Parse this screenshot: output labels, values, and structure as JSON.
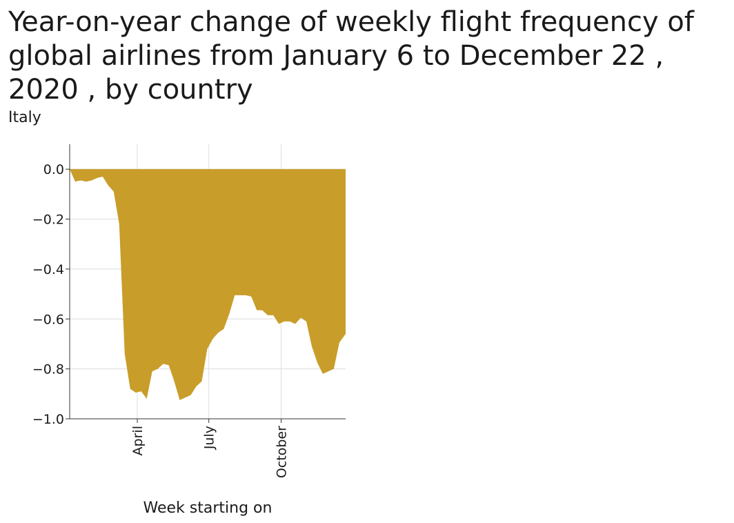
{
  "chart_data": {
    "type": "area",
    "title": "Year-on-year change of weekly flight frequency of global airlines from January 6 to December 22 , 2020 , by country",
    "subtitle": "Italy",
    "xlabel": "Week starting on",
    "ylabel": "",
    "ylim": [
      -1.0,
      0.1
    ],
    "xlim": [
      "2020-01-06",
      "2020-12-22"
    ],
    "grid": true,
    "fill_color": "#c89d2a",
    "x_ticks": [
      {
        "date": "2020-04-01",
        "label": "April"
      },
      {
        "date": "2020-07-01",
        "label": "July"
      },
      {
        "date": "2020-10-01",
        "label": "October"
      }
    ],
    "y_ticks": [
      {
        "value": 0.0,
        "label": "0.0"
      },
      {
        "value": -0.2,
        "label": "−0.2"
      },
      {
        "value": -0.4,
        "label": "−0.4"
      },
      {
        "value": -0.6,
        "label": "−0.6"
      },
      {
        "value": -0.8,
        "label": "−0.8"
      },
      {
        "value": -1.0,
        "label": "−1.0"
      }
    ],
    "series": [
      {
        "x": [
          "2020-01-06",
          "2020-01-13",
          "2020-01-20",
          "2020-01-27",
          "2020-02-03",
          "2020-02-10",
          "2020-02-17",
          "2020-02-24",
          "2020-03-02",
          "2020-03-09",
          "2020-03-16",
          "2020-03-23",
          "2020-03-30",
          "2020-04-06",
          "2020-04-13",
          "2020-04-20",
          "2020-04-27",
          "2020-05-04",
          "2020-05-11",
          "2020-05-18",
          "2020-05-25",
          "2020-06-01",
          "2020-06-08",
          "2020-06-15",
          "2020-06-22",
          "2020-06-29",
          "2020-07-06",
          "2020-07-13",
          "2020-07-20",
          "2020-07-27",
          "2020-08-03",
          "2020-08-10",
          "2020-08-17",
          "2020-08-24",
          "2020-08-31",
          "2020-09-07",
          "2020-09-14",
          "2020-09-21",
          "2020-09-28",
          "2020-10-05",
          "2020-10-12",
          "2020-10-19",
          "2020-10-26",
          "2020-11-02",
          "2020-11-09",
          "2020-11-16",
          "2020-11-23",
          "2020-11-30",
          "2020-12-07",
          "2020-12-14",
          "2020-12-22"
        ],
        "values": [
          0.0,
          -0.05,
          -0.045,
          -0.05,
          -0.045,
          -0.035,
          -0.03,
          -0.065,
          -0.09,
          -0.22,
          -0.74,
          -0.88,
          -0.895,
          -0.89,
          -0.92,
          -0.81,
          -0.8,
          -0.78,
          -0.785,
          -0.85,
          -0.925,
          -0.915,
          -0.905,
          -0.87,
          -0.85,
          -0.72,
          -0.68,
          -0.655,
          -0.64,
          -0.58,
          -0.505,
          -0.505,
          -0.505,
          -0.51,
          -0.565,
          -0.565,
          -0.585,
          -0.585,
          -0.62,
          -0.61,
          -0.61,
          -0.62,
          -0.595,
          -0.61,
          -0.71,
          -0.775,
          -0.82,
          -0.81,
          -0.8,
          -0.695,
          -0.66
        ]
      }
    ]
  }
}
